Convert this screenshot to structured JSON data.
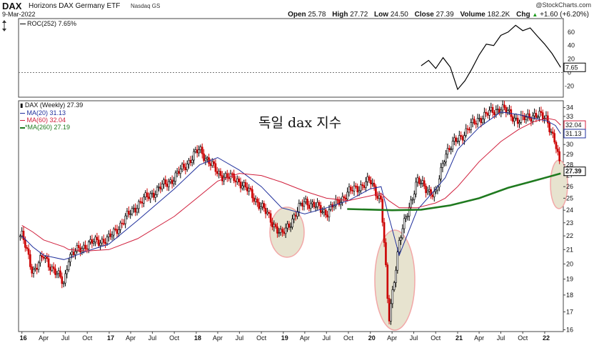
{
  "header": {
    "ticker": "DAX",
    "name": "Horizons DAX Germany ETF",
    "exchange": "Nasdaq GS",
    "date": "9-Mar-2022",
    "copyright": "@StockCharts.com",
    "open_label": "Open",
    "open": "25.78",
    "high_label": "High",
    "high": "27.72",
    "low_label": "Low",
    "low": "24.50",
    "close_label": "Close",
    "close": "27.39",
    "volume_label": "Volume",
    "volume": "182.2K",
    "chg_label": "Chg",
    "chg": "+1.60 (+6.20%)",
    "chg_arrow": "▲"
  },
  "annotation": "독일 dax 지수",
  "colors": {
    "price_up": "#000000",
    "price_down": "#cc0000",
    "ma20": "#1f2f9c",
    "ma60": "#d01f3c",
    "ma260": "#1f7a1f",
    "roc": "#000000",
    "highlight_fill": "#e7e3cf",
    "highlight_stroke": "#f2a7a7"
  },
  "chart_data": [
    {
      "type": "line",
      "legend": "ROC(252) 7.65%",
      "series": [
        {
          "name": "ROC(252)",
          "x": [
            "2020-08-01",
            "2020-09-01",
            "2020-10-01",
            "2020-11-01",
            "2020-12-01",
            "2021-01-01",
            "2021-02-01",
            "2021-03-01",
            "2021-04-01",
            "2021-05-01",
            "2021-06-01",
            "2021-07-01",
            "2021-08-01",
            "2021-09-01",
            "2021-10-01",
            "2021-11-01",
            "2021-12-01",
            "2022-01-01",
            "2022-02-01",
            "2022-03-09"
          ],
          "values": [
            10,
            18,
            6,
            22,
            8,
            -25,
            -12,
            5,
            26,
            42,
            40,
            55,
            60,
            70,
            62,
            66,
            54,
            42,
            28,
            7.65
          ]
        }
      ],
      "y_ticks": [
        60,
        40,
        20,
        0,
        -20
      ],
      "last_value_label": "7.65",
      "zero_line": "dashed"
    },
    {
      "type": "line",
      "legend_title": "DAX (Weekly) 27.39",
      "x_tick_labels": [
        "16",
        "Apr",
        "Jul",
        "Oct",
        "17",
        "Apr",
        "Jul",
        "Oct",
        "18",
        "Apr",
        "Jul",
        "Oct",
        "19",
        "Apr",
        "Jul",
        "Oct",
        "20",
        "Apr",
        "Jul",
        "Oct",
        "21",
        "Apr",
        "Jul",
        "Oct",
        "22"
      ],
      "y_ticks": [
        34,
        33,
        32,
        31,
        30,
        29,
        28,
        27,
        26,
        25,
        24,
        23,
        22,
        21,
        20,
        19,
        18,
        17,
        16
      ],
      "ylim": [
        15.9,
        34.8
      ],
      "y_scale": "log",
      "x": [
        "2016-01-01",
        "2016-02-15",
        "2016-04-01",
        "2016-06-25",
        "2016-07-15",
        "2016-10-01",
        "2016-12-31",
        "2017-05-01",
        "2017-10-01",
        "2018-01-15",
        "2018-04-01",
        "2018-07-01",
        "2018-10-01",
        "2018-12-25",
        "2019-04-01",
        "2019-07-01",
        "2019-10-01",
        "2019-12-31",
        "2020-02-15",
        "2020-03-18",
        "2020-05-01",
        "2020-07-15",
        "2020-10-01",
        "2020-11-10",
        "2021-01-01",
        "2021-04-01",
        "2021-07-01",
        "2021-09-15",
        "2021-11-15",
        "2022-01-10",
        "2022-02-15",
        "2022-03-09"
      ],
      "series": [
        {
          "name": "DAX (Weekly)",
          "values": [
            22.0,
            19.5,
            20.5,
            18.7,
            20.5,
            21.4,
            21.8,
            24.5,
            26.8,
            29.5,
            27.2,
            26.5,
            24.3,
            22.0,
            24.8,
            23.8,
            25.5,
            26.5,
            24.8,
            16.4,
            21.5,
            26.5,
            25.2,
            29.2,
            30.5,
            32.8,
            34.0,
            32.5,
            33.2,
            32.8,
            30.0,
            27.39
          ]
        },
        {
          "name": "MA(20)",
          "legend": "MA(20) 31.13",
          "values": [
            22.0,
            21.2,
            20.6,
            20.3,
            20.4,
            20.9,
            21.4,
            23.2,
            25.8,
            28.0,
            28.7,
            27.5,
            26.0,
            24.2,
            23.7,
            24.2,
            24.8,
            25.8,
            26.0,
            23.5,
            20.6,
            24.0,
            25.8,
            26.8,
            29.5,
            31.8,
            33.5,
            33.2,
            32.8,
            32.5,
            32.0,
            31.13
          ]
        },
        {
          "name": "MA(60)",
          "legend": "MA(60) 32.04",
          "values": [
            22.8,
            22.3,
            21.7,
            21.2,
            21.0,
            20.9,
            21.0,
            21.8,
            23.5,
            25.2,
            26.5,
            27.2,
            27.0,
            26.4,
            25.6,
            25.0,
            24.8,
            25.2,
            25.4,
            24.8,
            24.2,
            24.2,
            24.6,
            25.0,
            26.0,
            28.3,
            30.3,
            31.6,
            32.4,
            32.8,
            32.6,
            32.04
          ]
        },
        {
          "name": "MA(260)",
          "legend": "*MA(260) 27.19",
          "x": [
            "2019-09-26",
            "2020-04-01",
            "2020-08-01",
            "2020-12-01",
            "2021-04-01",
            "2021-08-01",
            "2021-12-01",
            "2022-03-09"
          ],
          "values": [
            24.1,
            24.0,
            24.05,
            24.4,
            25.0,
            25.9,
            26.6,
            27.19
          ]
        }
      ],
      "right_labels": [
        "32.04",
        "31.13",
        "27.39"
      ]
    }
  ]
}
